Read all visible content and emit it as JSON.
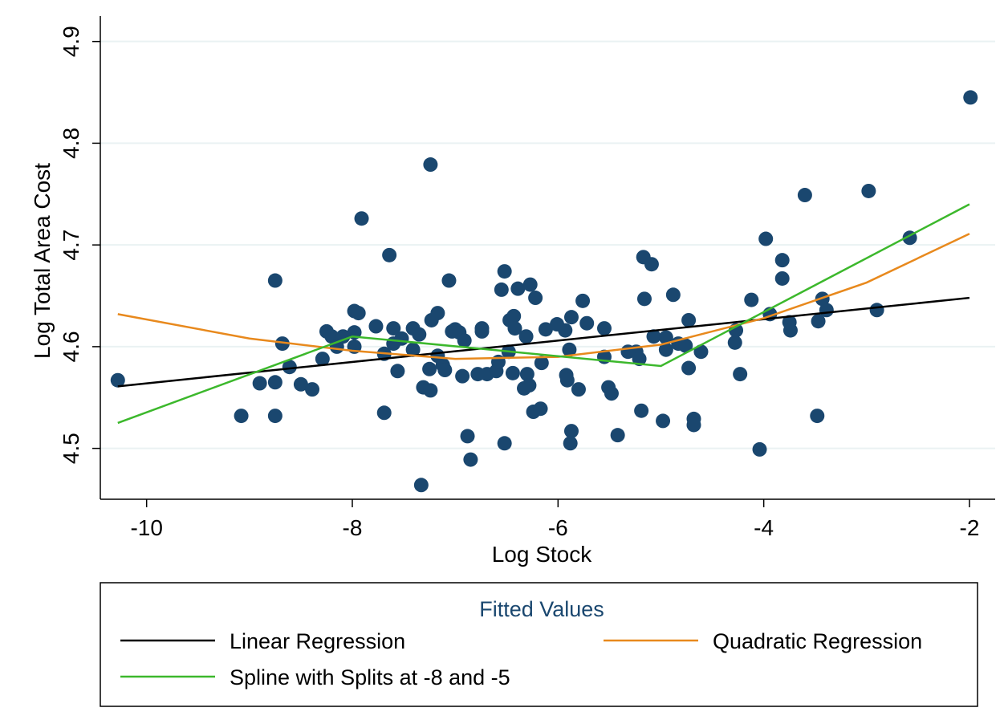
{
  "chart_data": {
    "type": "scatter",
    "x_label": "Log Stock",
    "y_label": "Log Total Area Cost",
    "xlim": [
      -10.45,
      -1.75
    ],
    "ylim": [
      4.45,
      4.925
    ],
    "xticks": [
      -10,
      -8,
      -6,
      -4,
      -2
    ],
    "yticks": [
      4.5,
      4.6,
      4.7,
      4.8,
      4.9
    ],
    "grid": true,
    "legend_title": "Fitted Values",
    "legend_position": "bottom",
    "series": [
      {
        "type": "scatter",
        "color": "#1a476f",
        "x": [
          -10.28,
          -9.08,
          -8.9,
          -8.75,
          -8.75,
          -8.75,
          -8.68,
          -8.61,
          -8.5,
          -8.39,
          -8.29,
          -8.25,
          -8.2,
          -8.15,
          -8.09,
          -7.98,
          -7.98,
          -7.98,
          -7.94,
          -7.91,
          -7.77,
          -7.69,
          -7.69,
          -7.64,
          -7.6,
          -7.6,
          -7.56,
          -7.52,
          -7.41,
          -7.41,
          -7.35,
          -7.33,
          -7.31,
          -7.25,
          -7.24,
          -7.24,
          -7.23,
          -7.17,
          -7.17,
          -7.12,
          -7.1,
          -7.06,
          -7.03,
          -7.0,
          -6.96,
          -6.93,
          -6.91,
          -6.88,
          -6.85,
          -6.78,
          -6.74,
          -6.74,
          -6.69,
          -6.6,
          -6.58,
          -6.55,
          -6.52,
          -6.52,
          -6.48,
          -6.47,
          -6.44,
          -6.43,
          -6.42,
          -6.39,
          -6.33,
          -6.31,
          -6.3,
          -6.28,
          -6.27,
          -6.24,
          -6.22,
          -6.17,
          -6.16,
          -6.12,
          -6.01,
          -5.93,
          -5.92,
          -5.91,
          -5.89,
          -5.87,
          -5.87,
          -5.88,
          -5.8,
          -5.76,
          -5.72,
          -5.55,
          -5.55,
          -5.51,
          -5.48,
          -5.42,
          -5.32,
          -5.24,
          -5.21,
          -5.19,
          -5.17,
          -5.16,
          -5.09,
          -5.07,
          -4.98,
          -4.95,
          -4.95,
          -4.88,
          -4.83,
          -4.76,
          -4.73,
          -4.73,
          -4.68,
          -4.68,
          -4.61,
          -4.28,
          -4.27,
          -4.23,
          -4.12,
          -4.04,
          -3.98,
          -3.94,
          -3.82,
          -3.82,
          -3.75,
          -3.74,
          -3.6,
          -3.48,
          -3.47,
          -3.43,
          -3.39,
          -2.98,
          -2.9,
          -2.58,
          -1.99
        ],
        "values": [
          4.567,
          4.532,
          4.564,
          4.665,
          4.565,
          4.532,
          4.603,
          4.58,
          4.563,
          4.558,
          4.588,
          4.615,
          4.61,
          4.6,
          4.61,
          4.635,
          4.614,
          4.6,
          4.633,
          4.726,
          4.62,
          4.535,
          4.593,
          4.69,
          4.618,
          4.603,
          4.576,
          4.608,
          4.618,
          4.597,
          4.612,
          4.464,
          4.56,
          4.578,
          4.779,
          4.557,
          4.626,
          4.633,
          4.591,
          4.582,
          4.577,
          4.665,
          4.615,
          4.617,
          4.614,
          4.571,
          4.606,
          4.512,
          4.489,
          4.573,
          4.618,
          4.615,
          4.573,
          4.576,
          4.585,
          4.656,
          4.674,
          4.505,
          4.595,
          4.626,
          4.574,
          4.63,
          4.618,
          4.657,
          4.559,
          4.61,
          4.573,
          4.562,
          4.661,
          4.536,
          4.648,
          4.539,
          4.584,
          4.617,
          4.622,
          4.616,
          4.572,
          4.567,
          4.597,
          4.629,
          4.517,
          4.505,
          4.558,
          4.645,
          4.623,
          4.618,
          4.59,
          4.56,
          4.554,
          4.513,
          4.595,
          4.595,
          4.588,
          4.537,
          4.688,
          4.647,
          4.681,
          4.61,
          4.527,
          4.609,
          4.597,
          4.651,
          4.603,
          4.601,
          4.626,
          4.579,
          4.529,
          4.523,
          4.595,
          4.604,
          4.616,
          4.573,
          4.646,
          4.499,
          4.706,
          4.632,
          4.685,
          4.667,
          4.624,
          4.616,
          4.749,
          4.532,
          4.625,
          4.647,
          4.636,
          4.753,
          4.636,
          4.707,
          4.845
        ]
      },
      {
        "type": "line",
        "name": "Linear Regression",
        "color": "#000000",
        "x": [
          -10.28,
          -2.0
        ],
        "values": [
          4.561,
          4.648
        ]
      },
      {
        "type": "line",
        "name": "Quadratic Regression",
        "color": "#e8891d",
        "x": [
          -10.28,
          -9,
          -8,
          -7,
          -6,
          -5,
          -4,
          -3,
          -2
        ],
        "values": [
          4.632,
          4.608,
          4.596,
          4.588,
          4.59,
          4.602,
          4.628,
          4.663,
          4.711
        ]
      },
      {
        "type": "line",
        "name": "Spline with Splits at -8 and -5",
        "color": "#3cb82c",
        "x": [
          -10.28,
          -8,
          -5,
          -2
        ],
        "values": [
          4.525,
          4.61,
          4.581,
          4.74
        ]
      }
    ]
  }
}
